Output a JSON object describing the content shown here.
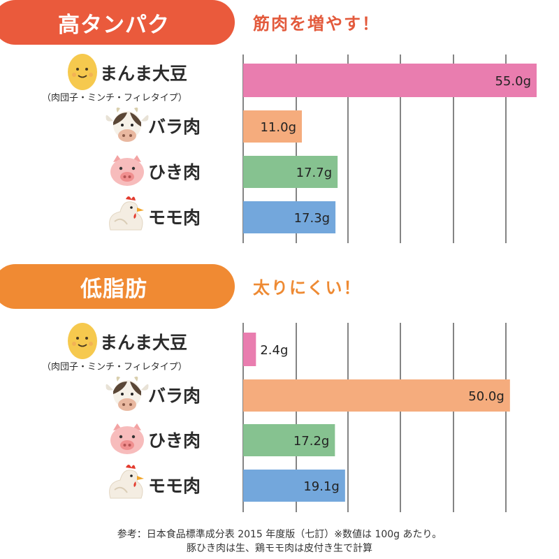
{
  "colors": {
    "pill_protein": "#ea5a3c",
    "pill_fat": "#f08a33",
    "tagline_protein": "#e35a3c",
    "tagline_fat": "#ee8a33",
    "bar_manma": "#e97daf",
    "bar_bara": "#f5ac7d",
    "bar_hiki": "#86c290",
    "bar_momo": "#73a7dc"
  },
  "sections": [
    {
      "pill": "高タンパク",
      "tagline": "筋肉を増やす！"
    },
    {
      "pill": "低脂肪",
      "tagline": "太りにくい！"
    }
  ],
  "rows": [
    {
      "label": "まんま大豆",
      "sublabel": "（肉団子・ミンチ・フィレタイプ）",
      "icon": "soybean-icon"
    },
    {
      "label": "バラ肉",
      "sublabel": "",
      "icon": "cow-icon"
    },
    {
      "label": "ひき肉",
      "sublabel": "",
      "icon": "pig-icon"
    },
    {
      "label": "モモ肉",
      "sublabel": "",
      "icon": "chicken-icon"
    }
  ],
  "chart_data": [
    {
      "type": "bar",
      "orientation": "horizontal",
      "categories": [
        "まんま大豆",
        "バラ肉",
        "ひき肉",
        "モモ肉"
      ],
      "values": [
        55.0,
        11.0,
        17.7,
        17.3
      ],
      "value_labels": [
        "55.0g",
        "11.0g",
        "17.7g",
        "17.3g"
      ],
      "unit": "g",
      "xlim": [
        0,
        55
      ],
      "grid": true
    },
    {
      "type": "bar",
      "orientation": "horizontal",
      "categories": [
        "まんま大豆",
        "バラ肉",
        "ひき肉",
        "モモ肉"
      ],
      "values": [
        2.4,
        50.0,
        17.2,
        19.1
      ],
      "value_labels": [
        "2.4g",
        "50.0g",
        "17.2g",
        "19.1g"
      ],
      "unit": "g",
      "xlim": [
        0,
        55
      ],
      "grid": true
    }
  ],
  "footer": {
    "line1": "参考：日本食品標準成分表 2015 年度版（七訂）※数値は 100g あたり。",
    "line2": "豚ひき肉は生、鶏モモ肉は皮付き生で計算"
  }
}
